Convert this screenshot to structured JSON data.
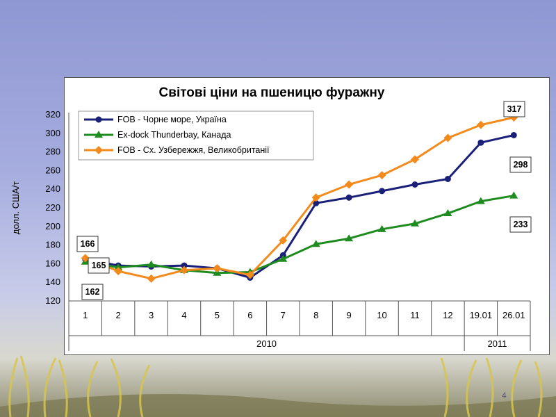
{
  "page_number": "4",
  "chart_data": {
    "type": "line",
    "title": "Світові ціни на пшеницю фуражну",
    "ylabel": "долл. США/т",
    "xlabel": "",
    "ylim": [
      120,
      320
    ],
    "yticks": [
      120,
      140,
      160,
      180,
      200,
      220,
      240,
      260,
      280,
      300,
      320
    ],
    "categories": [
      "1",
      "2",
      "3",
      "4",
      "5",
      "6",
      "7",
      "8",
      "9",
      "10",
      "11",
      "12",
      "19.01",
      "26.01"
    ],
    "groups": [
      {
        "label": "2010",
        "span": 12
      },
      {
        "label": "2011",
        "span": 2
      }
    ],
    "grid": false,
    "legend_position": "top-left",
    "series": [
      {
        "name": "FOB - Чорне море, Україна",
        "color": "#1a1f7a",
        "marker": "circle",
        "values": [
          165,
          158,
          157,
          158,
          155,
          145,
          169,
          225,
          231,
          238,
          245,
          251,
          290,
          298
        ]
      },
      {
        "name": "Ex-dock Thunderbay, Канада",
        "color": "#1e8c1e",
        "marker": "triangle",
        "values": [
          162,
          156,
          159,
          153,
          150,
          151,
          165,
          181,
          187,
          197,
          203,
          214,
          227,
          233
        ]
      },
      {
        "name": "FOB - Сх. Узбережжя, Великобританії",
        "color": "#f28a1c",
        "marker": "diamond",
        "values": [
          166,
          152,
          144,
          153,
          155,
          148,
          185,
          231,
          245,
          255,
          272,
          295,
          309,
          317
        ]
      }
    ],
    "callouts": [
      "166",
      "165",
      "162",
      "317",
      "298",
      "233"
    ]
  }
}
